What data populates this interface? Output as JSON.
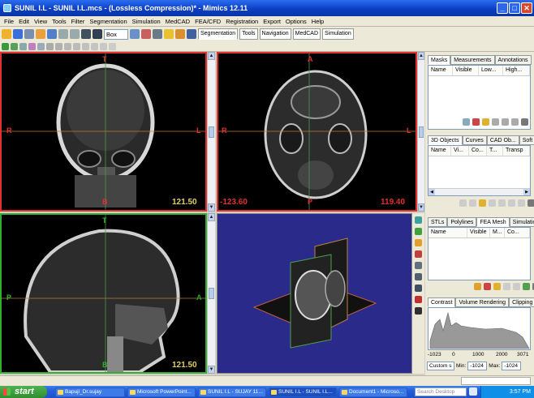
{
  "window": {
    "title": "SUNIL I.L - SUNIL I.L.mcs - (Lossless Compression)* - Mimics 12.11"
  },
  "menu": [
    "File",
    "Edit",
    "View",
    "Tools",
    "Filter",
    "Segmentation",
    "Simulation",
    "MedCAD",
    "FEA/CFD",
    "Registration",
    "Export",
    "Options",
    "Help"
  ],
  "toolbar": {
    "shape_select": "Box",
    "tabs": [
      "Segmentation",
      "Tools",
      "Navigation",
      "MedCAD",
      "Simulation"
    ],
    "active_tab": "Segmentation"
  },
  "views": {
    "coronal": {
      "top": "T",
      "bottom": "B",
      "left": "R",
      "right": "L",
      "value": "121.50"
    },
    "axial": {
      "top": "A",
      "bottom": "P",
      "left": "R",
      "right": "L",
      "value_left": "-123.60",
      "value_right": "119.40"
    },
    "sagittal": {
      "top": "T",
      "bottom": "B",
      "left": "P",
      "right": "A",
      "value": "121.50"
    }
  },
  "masks_panel": {
    "tabs": [
      "Masks",
      "Measurements",
      "Annotations"
    ],
    "columns": [
      "Name",
      "Visible",
      "Low...",
      "High..."
    ]
  },
  "objects_panel": {
    "tabs": [
      "3D Objects",
      "Curves",
      "CAD Ob...",
      "Soft tis..."
    ],
    "columns": [
      "Name",
      "Vi...",
      "Co...",
      "T...",
      "Transp"
    ]
  },
  "stl_panel": {
    "tabs": [
      "STLs",
      "Polylines",
      "FEA Mesh",
      "Simulation O..."
    ],
    "columns": [
      "Name",
      "Visible",
      "M...",
      "Co..."
    ]
  },
  "contrast_panel": {
    "tabs": [
      "Contrast",
      "Volume Rendering",
      "Clipping"
    ],
    "axis_ticks": [
      "-1023",
      "0",
      "1000",
      "2000",
      "3071"
    ],
    "preset": "Custom s",
    "min_label": "Min:",
    "min_value": "-1024",
    "max_label": "Max:",
    "max_value": "-1024"
  },
  "taskbar": {
    "start": "start",
    "items": [
      "Bapuji_Dr.sujay",
      "Microsoft PowerPoint...",
      "SUNIL I.L - SUJAY 11...",
      "SUNIL I.L - SUNIL I.L...",
      "Document1 - Microso..."
    ],
    "search_placeholder": "Search Desktop",
    "clock": "3:57 PM"
  },
  "colors": {
    "title_blue": "#0a3cc0",
    "view_red": "#e03030",
    "view_green": "#2fb02f",
    "volume_bg": "#2a2a8a",
    "crosshair": "#c87830"
  }
}
